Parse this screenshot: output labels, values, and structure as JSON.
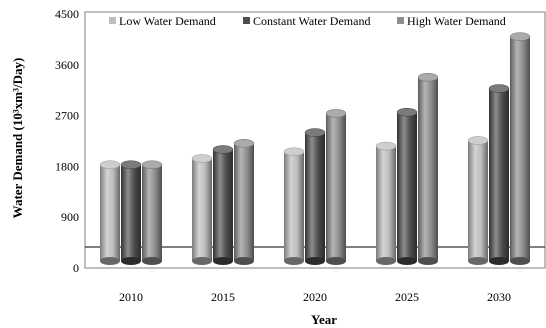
{
  "chart_data": {
    "type": "bar",
    "categories": [
      "2010",
      "2015",
      "2020",
      "2025",
      "2030"
    ],
    "series": [
      {
        "name": "Low Water Demand",
        "color": "#bdbdbd",
        "values": [
          1830,
          1940,
          2060,
          2160,
          2260
        ]
      },
      {
        "name": "Constant Water Demand",
        "color": "#4f4f4f",
        "values": [
          1830,
          2100,
          2400,
          2760,
          3180
        ]
      },
      {
        "name": "High Water Demand",
        "color": "#8e8e8e",
        "values": [
          1830,
          2210,
          2740,
          3380,
          4100
        ]
      }
    ],
    "ylim": [
      0,
      4500
    ],
    "yticks": [
      "0",
      "900",
      "1800",
      "2700",
      "3600",
      "4500"
    ],
    "xlabel": "Year",
    "ylabel": "Water Demand (10³xm³/Day)",
    "legend_position": "top",
    "grid": false
  }
}
